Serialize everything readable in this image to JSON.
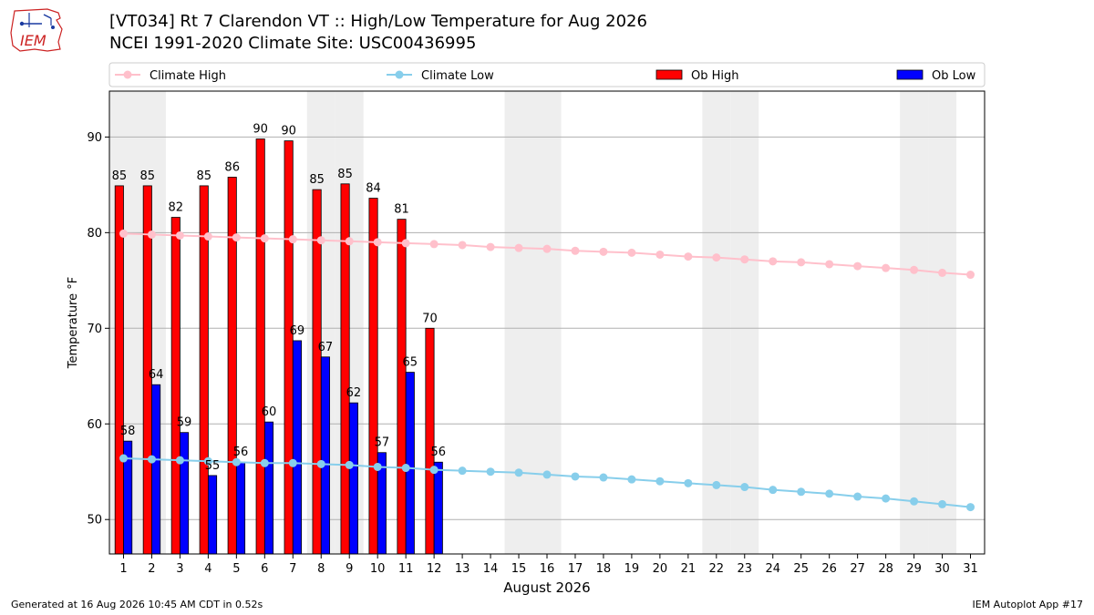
{
  "header": {
    "title_line1": "[VT034] Rt 7 Clarendon  VT :: High/Low Temperature for Aug 2026",
    "title_line2": "NCEI 1991-2020 Climate Site: USC00436995",
    "logo_text": "IEM"
  },
  "footer": {
    "generated": "Generated at 16 Aug 2026 10:45 AM CDT in 0.52s",
    "app": "IEM Autoplot App #17"
  },
  "colors": {
    "ob_high": "#ff0000",
    "ob_low": "#0000ff",
    "climate_high": "#ffc0cb",
    "climate_low": "#87ceeb",
    "weekend_shade": "#eeeeee"
  },
  "chart_data": {
    "type": "bar",
    "xlabel": "August 2026",
    "ylabel": "Temperature °F",
    "xlim": [
      0.5,
      31.5
    ],
    "ylim": [
      46.4,
      94.8
    ],
    "yticks": [
      50,
      60,
      70,
      80,
      90
    ],
    "grid": "horizontal",
    "legend_placement": "top",
    "shaded_days": [
      1,
      2,
      8,
      9,
      15,
      16,
      22,
      23,
      29,
      30
    ],
    "days": [
      1,
      2,
      3,
      4,
      5,
      6,
      7,
      8,
      9,
      10,
      11,
      12,
      13,
      14,
      15,
      16,
      17,
      18,
      19,
      20,
      21,
      22,
      23,
      24,
      25,
      26,
      27,
      28,
      29,
      30,
      31
    ],
    "series": [
      {
        "name": "Climate High",
        "type": "line",
        "values": [
          79.9,
          79.8,
          79.7,
          79.6,
          79.5,
          79.4,
          79.3,
          79.2,
          79.1,
          79.0,
          78.9,
          78.8,
          78.7,
          78.5,
          78.4,
          78.3,
          78.1,
          78.0,
          77.9,
          77.7,
          77.5,
          77.4,
          77.2,
          77.0,
          76.9,
          76.7,
          76.5,
          76.3,
          76.1,
          75.8,
          75.6
        ]
      },
      {
        "name": "Climate Low",
        "type": "line",
        "values": [
          56.4,
          56.3,
          56.2,
          56.1,
          56.0,
          55.9,
          55.9,
          55.8,
          55.7,
          55.5,
          55.4,
          55.2,
          55.1,
          55.0,
          54.9,
          54.7,
          54.5,
          54.4,
          54.2,
          54.0,
          53.8,
          53.6,
          53.4,
          53.1,
          52.9,
          52.7,
          52.4,
          52.2,
          51.9,
          51.6,
          51.3
        ]
      },
      {
        "name": "Ob High",
        "type": "bar",
        "values": [
          85,
          85,
          82,
          85,
          86,
          90,
          90,
          85,
          85,
          84,
          81,
          70
        ],
        "plotted": [
          84.9,
          84.9,
          81.6,
          84.9,
          85.8,
          89.8,
          89.6,
          84.5,
          85.1,
          83.6,
          81.4,
          70.0
        ],
        "labels": [
          "85",
          "85",
          "82",
          "85",
          "86",
          "90",
          "90",
          "85",
          "85",
          "84",
          "81",
          "70"
        ]
      },
      {
        "name": "Ob Low",
        "type": "bar",
        "values": [
          58,
          64,
          59,
          55,
          56,
          60,
          69,
          67,
          62,
          57,
          65,
          56
        ],
        "plotted": [
          58.2,
          64.1,
          59.1,
          54.6,
          56.0,
          60.2,
          68.7,
          67.0,
          62.2,
          57.0,
          65.4,
          56.0
        ],
        "labels": [
          "58",
          "64",
          "59",
          "55",
          "56",
          "60",
          "69",
          "67",
          "62",
          "57",
          "65",
          "56"
        ]
      }
    ]
  }
}
